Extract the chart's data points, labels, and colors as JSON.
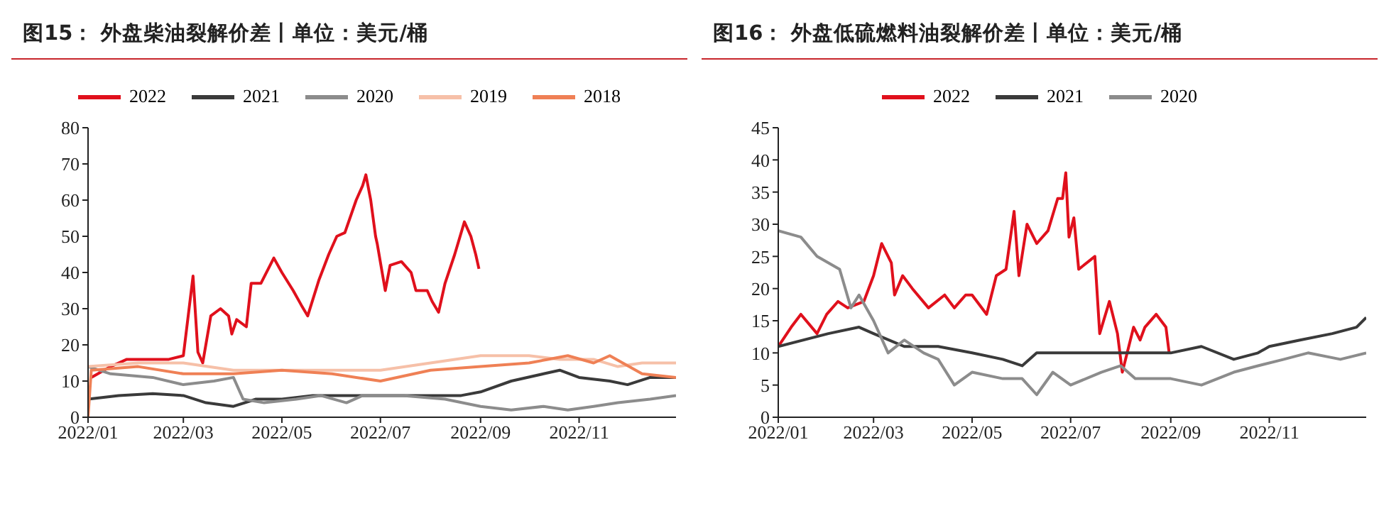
{
  "chart_data": [
    {
      "type": "line",
      "title": "图15： 外盘柴油裂解价差丨单位：美元/桶",
      "legend": "top",
      "xlim": [
        "2022-01-01",
        "2022-12-31"
      ],
      "xticks": [
        {
          "value": "2022-01-01",
          "label": "2022/01"
        },
        {
          "value": "2022-03-01",
          "label": "2022/03"
        },
        {
          "value": "2022-05-01",
          "label": "2022/05"
        },
        {
          "value": "2022-07-01",
          "label": "2022/07"
        },
        {
          "value": "2022-09-01",
          "label": "2022/09"
        },
        {
          "value": "2022-11-01",
          "label": "2022/11"
        }
      ],
      "ylim": [
        0,
        80
      ],
      "yticks": [
        0,
        10,
        20,
        30,
        40,
        50,
        60,
        70,
        80
      ],
      "series": [
        {
          "name": "2022",
          "color": "#e0101c",
          "x": [
            "2022-01-03",
            "2022-01-15",
            "2022-01-25",
            "2022-02-10",
            "2022-02-20",
            "2022-03-01",
            "2022-03-04",
            "2022-03-07",
            "2022-03-10",
            "2022-03-13",
            "2022-03-18",
            "2022-03-24",
            "2022-03-29",
            "2022-03-31",
            "2022-04-03",
            "2022-04-09",
            "2022-04-12",
            "2022-04-18",
            "2022-04-26",
            "2022-05-01",
            "2022-05-08",
            "2022-05-13",
            "2022-05-17",
            "2022-05-24",
            "2022-05-30",
            "2022-06-04",
            "2022-06-09",
            "2022-06-16",
            "2022-06-20",
            "2022-06-22",
            "2022-06-25",
            "2022-06-28",
            "2022-06-29",
            "2022-07-04",
            "2022-07-07",
            "2022-07-14",
            "2022-07-20",
            "2022-07-23",
            "2022-07-30",
            "2022-08-02",
            "2022-08-06",
            "2022-08-10",
            "2022-08-16",
            "2022-08-22",
            "2022-08-26",
            "2022-08-29",
            "2022-08-31"
          ],
          "values": [
            11,
            14,
            16,
            16,
            16,
            17,
            28,
            39,
            18,
            15,
            28,
            30,
            28,
            23,
            27,
            25,
            37,
            37,
            44,
            40,
            35,
            31,
            28,
            38,
            45,
            50,
            51,
            60,
            64,
            67,
            60,
            50,
            48,
            35,
            42,
            43,
            40,
            35,
            35,
            32,
            29,
            37,
            45,
            54,
            50,
            45,
            41
          ]
        },
        {
          "name": "2021",
          "color": "#3a3a3a",
          "x": [
            "2022-01-01",
            "2022-01-20",
            "2022-02-10",
            "2022-03-01",
            "2022-03-15",
            "2022-04-01",
            "2022-04-15",
            "2022-05-01",
            "2022-05-20",
            "2022-06-10",
            "2022-07-01",
            "2022-08-01",
            "2022-08-20",
            "2022-09-01",
            "2022-09-20",
            "2022-10-10",
            "2022-10-20",
            "2022-11-01",
            "2022-11-20",
            "2022-12-01",
            "2022-12-15",
            "2022-12-31"
          ],
          "values": [
            5,
            6,
            6.5,
            6,
            4,
            3,
            5,
            5,
            6,
            6,
            6,
            6,
            6,
            7,
            10,
            12,
            13,
            11,
            10,
            9,
            11,
            11
          ]
        },
        {
          "name": "2020",
          "color": "#8c8c8c",
          "x": [
            "2022-01-01",
            "2022-01-15",
            "2022-02-10",
            "2022-03-01",
            "2022-03-20",
            "2022-04-01",
            "2022-04-07",
            "2022-04-20",
            "2022-05-10",
            "2022-05-25",
            "2022-06-10",
            "2022-06-20",
            "2022-07-15",
            "2022-08-10",
            "2022-09-01",
            "2022-09-20",
            "2022-10-10",
            "2022-10-25",
            "2022-11-10",
            "2022-11-25",
            "2022-12-15",
            "2022-12-31"
          ],
          "values": [
            14,
            12,
            11,
            9,
            10,
            11,
            5,
            4,
            5,
            6,
            4,
            6,
            6,
            5,
            3,
            2,
            3,
            2,
            3,
            4,
            5,
            6
          ]
        },
        {
          "name": "2019",
          "color": "#f6c0a8",
          "x": [
            "2022-01-01",
            "2022-02-01",
            "2022-03-01",
            "2022-04-01",
            "2022-05-01",
            "2022-06-01",
            "2022-07-01",
            "2022-08-01",
            "2022-09-01",
            "2022-10-01",
            "2022-10-20",
            "2022-11-10",
            "2022-11-25",
            "2022-12-10",
            "2022-12-31"
          ],
          "values": [
            14,
            15,
            15,
            13,
            13,
            13,
            13,
            15,
            17,
            17,
            16,
            16,
            14,
            15,
            15
          ]
        },
        {
          "name": "2018",
          "color": "#ef8055",
          "x": [
            "2022-01-01",
            "2022-01-03",
            "2022-02-01",
            "2022-03-01",
            "2022-04-01",
            "2022-05-01",
            "2022-06-01",
            "2022-07-01",
            "2022-08-01",
            "2022-09-01",
            "2022-10-01",
            "2022-10-25",
            "2022-11-10",
            "2022-11-20",
            "2022-12-10",
            "2022-12-31"
          ],
          "values": [
            0,
            13,
            14,
            12,
            12,
            13,
            12,
            10,
            13,
            14,
            15,
            17,
            15,
            17,
            12,
            11
          ]
        }
      ]
    },
    {
      "type": "line",
      "title": "图16： 外盘低硫燃料油裂解价差丨单位：美元/桶",
      "legend": "top",
      "xlim": [
        "2022-01-01",
        "2022-12-31"
      ],
      "xticks": [
        {
          "value": "2022-01-01",
          "label": "2022/01"
        },
        {
          "value": "2022-03-01",
          "label": "2022/03"
        },
        {
          "value": "2022-05-01",
          "label": "2022/05"
        },
        {
          "value": "2022-07-01",
          "label": "2022/07"
        },
        {
          "value": "2022-09-01",
          "label": "2022/09"
        },
        {
          "value": "2022-11-01",
          "label": "2022/11"
        }
      ],
      "ylim": [
        0,
        45
      ],
      "yticks": [
        0,
        5,
        10,
        15,
        20,
        25,
        30,
        35,
        40,
        45
      ],
      "series": [
        {
          "name": "2022",
          "color": "#e0101c",
          "x": [
            "2022-01-01",
            "2022-01-09",
            "2022-01-15",
            "2022-01-25",
            "2022-01-31",
            "2022-02-07",
            "2022-02-13",
            "2022-02-23",
            "2022-03-01",
            "2022-03-06",
            "2022-03-12",
            "2022-03-14",
            "2022-03-19",
            "2022-03-25",
            "2022-04-04",
            "2022-04-14",
            "2022-04-20",
            "2022-04-27",
            "2022-05-01",
            "2022-05-10",
            "2022-05-16",
            "2022-05-22",
            "2022-05-27",
            "2022-05-30",
            "2022-06-04",
            "2022-06-10",
            "2022-06-17",
            "2022-06-23",
            "2022-06-26",
            "2022-06-28",
            "2022-06-30",
            "2022-07-03",
            "2022-07-06",
            "2022-07-16",
            "2022-07-19",
            "2022-07-25",
            "2022-07-30",
            "2022-08-02",
            "2022-08-09",
            "2022-08-13",
            "2022-08-16",
            "2022-08-23",
            "2022-08-29",
            "2022-08-31"
          ],
          "values": [
            11,
            14,
            16,
            13,
            16,
            18,
            17,
            18,
            22,
            27,
            24,
            19,
            22,
            20,
            17,
            19,
            17,
            19,
            19,
            16,
            22,
            23,
            32,
            22,
            30,
            27,
            29,
            34,
            34,
            38,
            28,
            31,
            23,
            25,
            13,
            18,
            13,
            7,
            14,
            12,
            14,
            16,
            14,
            10
          ]
        },
        {
          "name": "2021",
          "color": "#3a3a3a",
          "x": [
            "2022-01-01",
            "2022-02-01",
            "2022-02-20",
            "2022-03-01",
            "2022-03-20",
            "2022-04-10",
            "2022-05-01",
            "2022-05-20",
            "2022-06-01",
            "2022-06-10",
            "2022-07-01",
            "2022-08-01",
            "2022-09-01",
            "2022-09-20",
            "2022-10-10",
            "2022-10-25",
            "2022-11-01",
            "2022-11-20",
            "2022-12-10",
            "2022-12-25",
            "2022-12-31"
          ],
          "values": [
            11,
            13,
            14,
            13,
            11,
            11,
            10,
            9,
            8,
            10,
            10,
            10,
            10,
            11,
            9,
            10,
            11,
            12,
            13,
            14,
            15.5
          ]
        },
        {
          "name": "2020",
          "color": "#8c8c8c",
          "x": [
            "2022-01-01",
            "2022-01-15",
            "2022-01-25",
            "2022-02-08",
            "2022-02-15",
            "2022-02-20",
            "2022-03-01",
            "2022-03-10",
            "2022-03-20",
            "2022-04-01",
            "2022-04-10",
            "2022-04-20",
            "2022-05-01",
            "2022-05-20",
            "2022-06-01",
            "2022-06-10",
            "2022-06-20",
            "2022-07-01",
            "2022-07-20",
            "2022-08-01",
            "2022-08-10",
            "2022-09-01",
            "2022-09-20",
            "2022-10-10",
            "2022-10-25",
            "2022-11-10",
            "2022-11-25",
            "2022-12-15",
            "2022-12-31"
          ],
          "values": [
            29,
            28,
            25,
            23,
            17,
            19,
            15,
            10,
            12,
            10,
            9,
            5,
            7,
            6,
            6,
            3.5,
            7,
            5,
            7,
            8,
            6,
            6,
            5,
            7,
            8,
            9,
            10,
            9,
            10
          ]
        }
      ]
    }
  ]
}
